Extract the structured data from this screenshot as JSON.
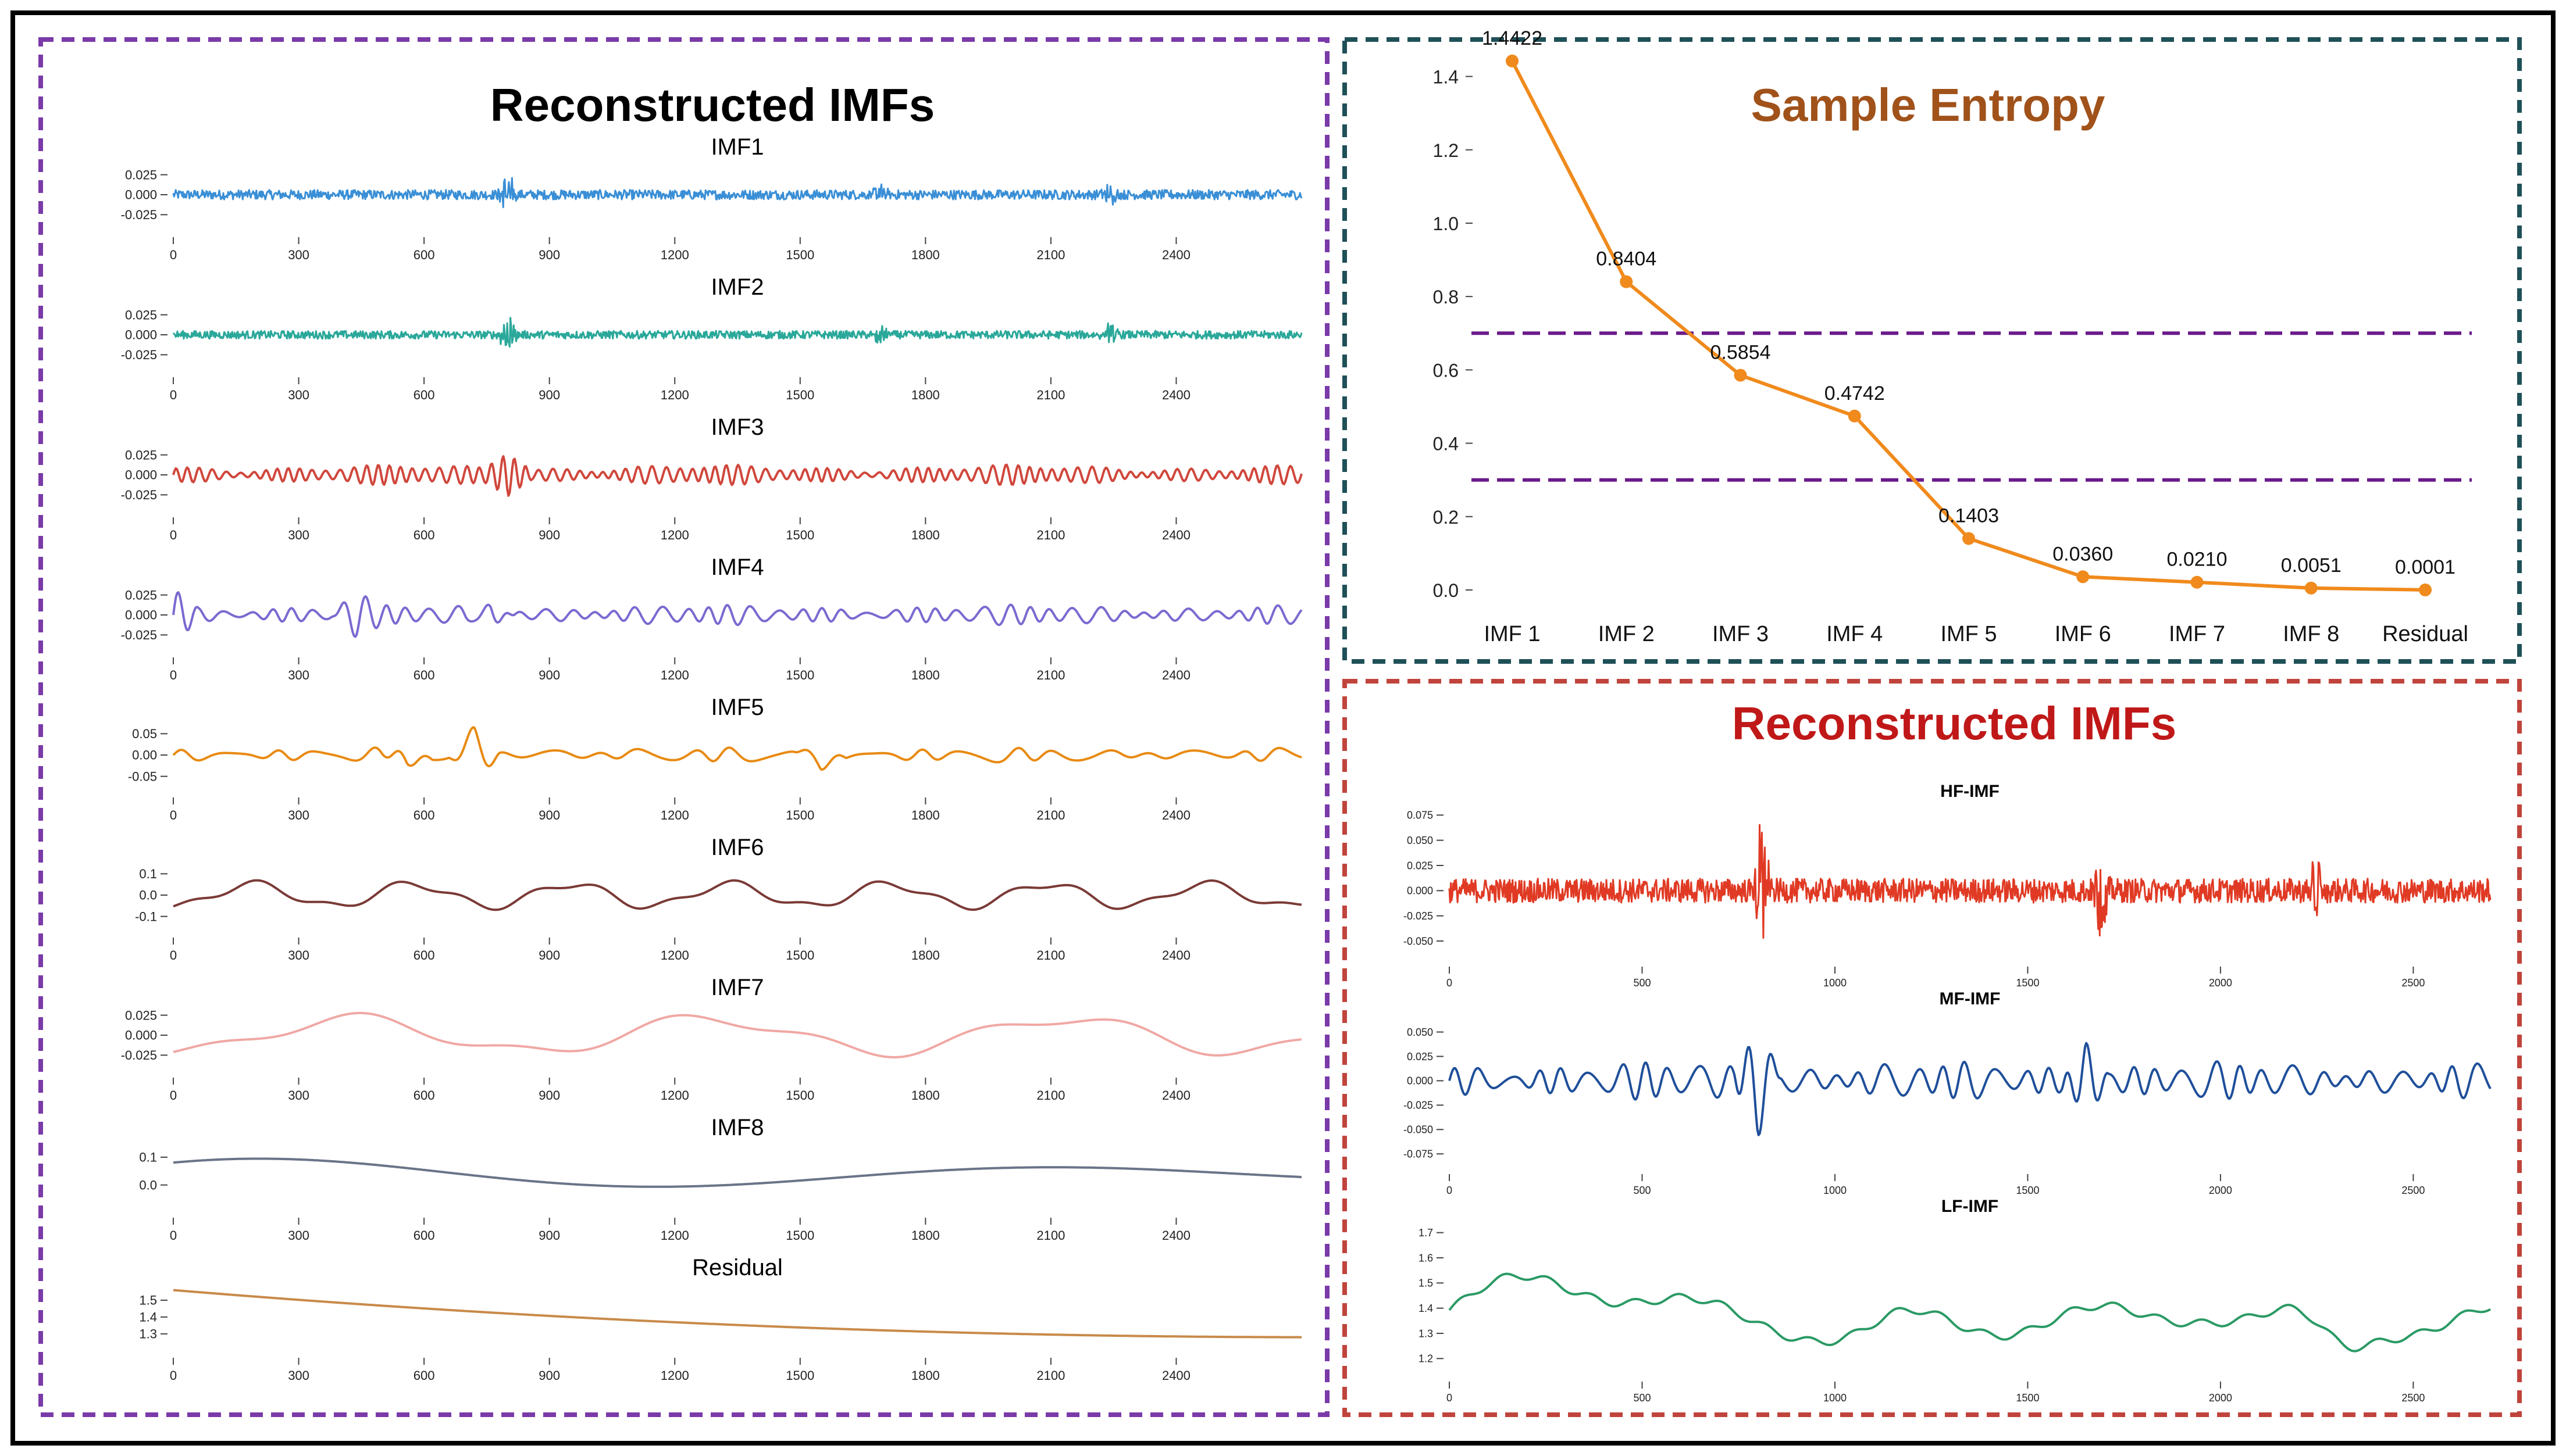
{
  "left_panel": {
    "title": "Reconstructed IMFs",
    "border_color": "#7a3aa8",
    "x_ticks": [
      "0",
      "300",
      "600",
      "900",
      "1200",
      "1500",
      "1800",
      "2100",
      "2400"
    ]
  },
  "right_top_panel": {
    "title": "Sample Entropy",
    "title_color": "#a0521a",
    "border_color": "#1f5058"
  },
  "right_bottom_panel": {
    "title": "Reconstructed IMFs",
    "title_color": "#c01818",
    "border_color": "#c0443c",
    "x_ticks": [
      "0",
      "500",
      "1000",
      "1500",
      "2000",
      "2500"
    ]
  },
  "chart_data": [
    {
      "type": "line",
      "title": "Sample Entropy",
      "categories": [
        "IMF 1",
        "IMF 2",
        "IMF 3",
        "IMF 4",
        "IMF 5",
        "IMF 6",
        "IMF 7",
        "IMF 8",
        "Residual"
      ],
      "values": [
        1.4422,
        0.8404,
        0.5854,
        0.4742,
        0.1403,
        0.036,
        0.021,
        0.0051,
        0.0001
      ],
      "value_labels": [
        "1.4422",
        "0.8404",
        "0.5854",
        "0.4742",
        "0.1403",
        "0.0360",
        "0.0210",
        "0.0051",
        "0.0001"
      ],
      "ylim": [
        0,
        1.45
      ],
      "y_ticks": [
        "0.0",
        "0.2",
        "0.4",
        "0.6",
        "0.8",
        "1.0",
        "1.2",
        "1.4"
      ],
      "thresholds": [
        0.7,
        0.3
      ],
      "line_color": "#f08a1c",
      "threshold_color": "#6a1a8a",
      "xlabel": "",
      "ylabel": ""
    },
    {
      "type": "line",
      "panel": "left",
      "series": [
        {
          "name": "IMF1",
          "color": "#3a8fd6",
          "y_ticks": [
            "0.025",
            "0.000",
            "-0.025"
          ],
          "y_tick_values": [
            0.025,
            0,
            -0.025
          ],
          "ylim": [
            -0.04,
            0.04
          ],
          "kind": "noise",
          "amp": 0.006,
          "bursts": [
            [
              800,
              0.03
            ],
            [
              1690,
              0.012
            ],
            [
              2240,
              0.012
            ]
          ]
        },
        {
          "name": "IMF2",
          "color": "#2aa89a",
          "y_ticks": [
            "0.025",
            "0.000",
            "-0.025"
          ],
          "y_tick_values": [
            0.025,
            0,
            -0.025
          ],
          "ylim": [
            -0.04,
            0.04
          ],
          "kind": "noise",
          "amp": 0.005,
          "bursts": [
            [
              800,
              0.03
            ],
            [
              1690,
              0.015
            ],
            [
              2240,
              0.015
            ]
          ]
        },
        {
          "name": "IMF3",
          "color": "#d0473c",
          "y_ticks": [
            "0.025",
            "0.000",
            "-0.025"
          ],
          "y_tick_values": [
            0.025,
            0,
            -0.025
          ],
          "ylim": [
            -0.04,
            0.04
          ],
          "kind": "osc",
          "amp": 0.013,
          "period": 30,
          "bursts": [
            [
              800,
              0.025
            ]
          ]
        },
        {
          "name": "IMF4",
          "color": "#7a6ad0",
          "y_ticks": [
            "0.025",
            "0.000",
            "-0.025"
          ],
          "y_tick_values": [
            0.025,
            0,
            -0.025
          ],
          "ylim": [
            -0.04,
            0.04
          ],
          "kind": "osc",
          "amp": 0.013,
          "period": 55,
          "bursts": [
            [
              0,
              0.025
            ],
            [
              440,
              0.02
            ],
            [
              760,
              0.02
            ]
          ]
        },
        {
          "name": "IMF5",
          "color": "#e88a12",
          "y_ticks": [
            "0.05",
            "0.00",
            "-0.05"
          ],
          "y_tick_values": [
            0.05,
            0,
            -0.05
          ],
          "ylim": [
            -0.075,
            0.075
          ],
          "kind": "osc",
          "amp": 0.018,
          "period": 110,
          "bursts": [
            [
              560,
              0.04
            ],
            [
              720,
              0.055
            ],
            [
              1550,
              0.05
            ]
          ]
        },
        {
          "name": "IMF6",
          "color": "#7a3a36",
          "y_ticks": [
            "0.1",
            "0.0",
            "-0.1"
          ],
          "y_tick_values": [
            0.1,
            0,
            -0.1
          ],
          "ylim": [
            -0.15,
            0.15
          ],
          "kind": "smooth",
          "amp": 0.07,
          "period": 380
        },
        {
          "name": "IMF7",
          "color": "#f0a8a4",
          "y_ticks": [
            "0.025",
            "0.000",
            "-0.025"
          ],
          "y_tick_values": [
            0.025,
            0,
            -0.025
          ],
          "ylim": [
            -0.04,
            0.04
          ],
          "kind": "smooth",
          "amp": 0.028,
          "period": 850
        },
        {
          "name": "IMF8",
          "color": "#6a7488",
          "y_ticks": [
            "0.1",
            "0.0"
          ],
          "y_tick_values": [
            0.1,
            0
          ],
          "ylim": [
            -0.08,
            0.15
          ],
          "kind": "imf8"
        },
        {
          "name": "Residual",
          "color": "#c88a4a",
          "y_ticks": [
            "1.5",
            "1.4",
            "1.3"
          ],
          "y_tick_values": [
            1.5,
            1.4,
            1.3
          ],
          "ylim": [
            1.22,
            1.6
          ],
          "kind": "residual"
        }
      ],
      "x_range": [
        0,
        2700
      ]
    },
    {
      "type": "line",
      "panel": "right-bottom",
      "series": [
        {
          "name": "HF-IMF",
          "color": "#e03a24",
          "y_ticks": [
            "0.075",
            "0.050",
            "0.025",
            "0.000",
            "-0.025",
            "-0.050"
          ],
          "y_tick_values": [
            0.075,
            0.05,
            0.025,
            0,
            -0.025,
            -0.05
          ],
          "ylim": [
            -0.065,
            0.085
          ],
          "kind": "noise",
          "amp": 0.012,
          "bursts": [
            [
              810,
              0.075
            ],
            [
              1690,
              0.05
            ],
            [
              2250,
              0.035
            ]
          ]
        },
        {
          "name": "MF-IMF",
          "color": "#1f4f9a",
          "y_ticks": [
            "0.050",
            "0.025",
            "0.000",
            "-0.025",
            "-0.050",
            "-0.075"
          ],
          "y_tick_values": [
            0.05,
            0.025,
            0,
            -0.025,
            -0.05,
            -0.075
          ],
          "ylim": [
            -0.085,
            0.07
          ],
          "kind": "osc",
          "amp": 0.02,
          "period": 70,
          "bursts": [
            [
              800,
              0.055
            ],
            [
              1650,
              0.045
            ]
          ]
        },
        {
          "name": "LF-IMF",
          "color": "#2a9a64",
          "y_ticks": [
            "1.7",
            "1.6",
            "1.5",
            "1.4",
            "1.3",
            "1.2"
          ],
          "y_tick_values": [
            1.7,
            1.6,
            1.5,
            1.4,
            1.3,
            1.2
          ],
          "ylim": [
            1.15,
            1.75
          ],
          "kind": "lf"
        }
      ],
      "x_range": [
        0,
        2700
      ]
    }
  ]
}
